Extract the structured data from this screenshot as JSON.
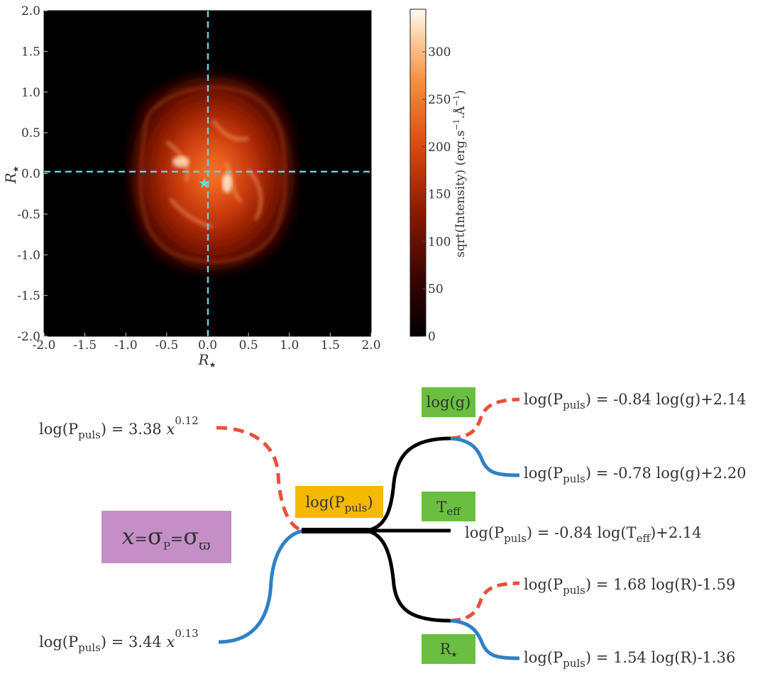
{
  "top_panel": {
    "x_ticks": [
      "-2.0",
      "-1.5",
      "-1.0",
      "-0.5",
      "0.0",
      "0.5",
      "1.0",
      "1.5",
      "2.0"
    ],
    "y_ticks": [
      "2.0",
      "1.5",
      "1.0",
      "0.5",
      "0.0",
      "-0.5",
      "-1.0",
      "-1.5",
      "-2.0"
    ],
    "x_label": "R",
    "y_label": "R",
    "axis_sub": "★",
    "colorbar_ticks": [
      "0",
      "50",
      "100",
      "150",
      "200",
      "250",
      "300"
    ],
    "colorbar_values": [
      0,
      50,
      100,
      150,
      200,
      250,
      300
    ],
    "colorbar_max": 345,
    "colorbar_label": "sqrt(Intensity) (erg.s",
    "colorbar_label_exp1": "−1",
    "colorbar_label_mid": ".Å",
    "colorbar_label_exp2": "−1",
    "colorbar_label_end": ")",
    "marker": "★",
    "colors": {
      "crosshair": "#5ed1e0",
      "marker": "#5fe0e8",
      "glow_core": "#ff8a3c",
      "glow_outer": "#b02a05"
    }
  },
  "diagram": {
    "root_box": {
      "sigma": "σ",
      "sub_p": "P",
      "varpi": "ϖ",
      "x": "x",
      "eq": "="
    },
    "log_p_box": {
      "pre": "log(P",
      "sub": "puls",
      "post": ")"
    },
    "log_g_box": "log(g)",
    "teff_box": {
      "pre": "T",
      "sub": "eff"
    },
    "rstar_box": {
      "pre": "R",
      "sub": "★"
    },
    "equations": {
      "left_top": {
        "pre": "log(P",
        "sub": "puls",
        "mid": ") = 3.38 ",
        "var": "x",
        "exp": "0.12"
      },
      "left_bottom": {
        "pre": "log(P",
        "sub": "puls",
        "mid": ") = 3.44 ",
        "var": "x",
        "exp": "0.13"
      },
      "g_top": {
        "pre": "log(P",
        "sub": "puls",
        "post": ") = -0.84 log(g)+2.14"
      },
      "g_bottom": {
        "pre": "log(P",
        "sub": "puls",
        "post": ") = -0.78 log(g)+2.20"
      },
      "teff": {
        "pre": "log(P",
        "sub": "puls",
        "mid": ") = -0.84 log(T",
        "sub2": "eff",
        "post": ")+2.14"
      },
      "r_top": {
        "pre": "log(P",
        "sub": "puls",
        "post": ") = 1.68 log(R)-1.59"
      },
      "r_bottom": {
        "pre": "log(P",
        "sub": "puls",
        "post": ") = 1.54 log(R)-1.36"
      }
    },
    "colors": {
      "purple_box": "#c48fc6",
      "yellow_box": "#f5b900",
      "green_box": "#6abf40",
      "red_dash": "#e8503c",
      "blue": "#2f80c8",
      "black": "#000000"
    }
  }
}
